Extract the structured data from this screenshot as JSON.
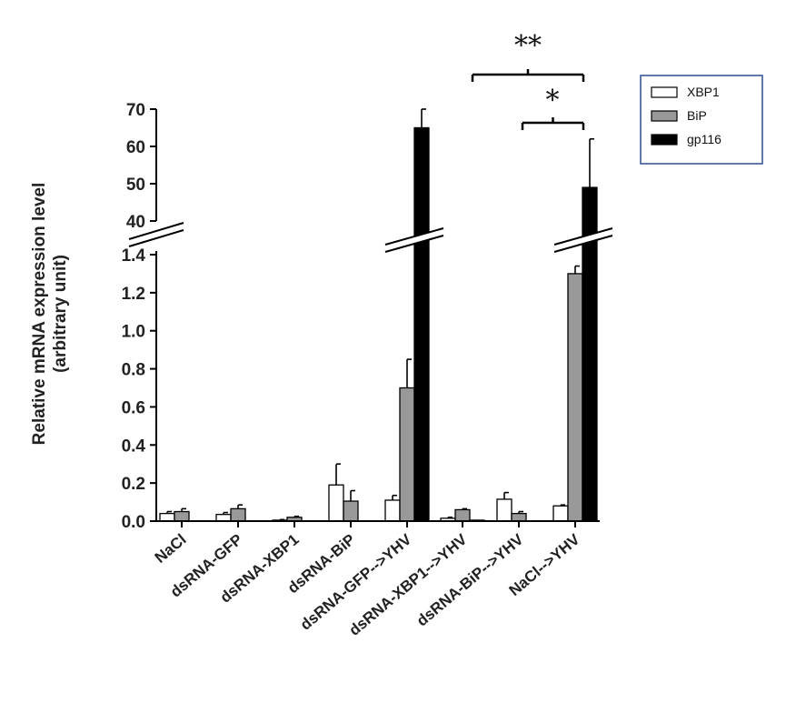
{
  "chart_data": {
    "type": "bar",
    "ylabel": "Relative mRNA expression level",
    "ylabel_sub": "(arbitrary unit)",
    "categories": [
      "NaCl",
      "dsRNA-GFP",
      "dsRNA-XBP1",
      "dsRNA-BiP",
      "dsRNA-GFP-->YHV",
      "dsRNA-XBP1-->YHV",
      "dsRNA-BiP-->YHV",
      "NaCl-->YHV"
    ],
    "series": [
      {
        "name": "XBP1",
        "color": "#ffffff",
        "values": [
          0.04,
          0.035,
          0.005,
          0.19,
          0.11,
          0.015,
          0.115,
          0.08
        ],
        "errors": [
          0.01,
          0.01,
          0.003,
          0.11,
          0.025,
          0.005,
          0.035,
          0.005
        ]
      },
      {
        "name": "BiP",
        "color": "#999999",
        "values": [
          0.05,
          0.065,
          0.02,
          0.105,
          0.7,
          0.06,
          0.04,
          1.3
        ],
        "errors": [
          0.015,
          0.02,
          0.005,
          0.055,
          0.15,
          0.005,
          0.01,
          0.04
        ]
      },
      {
        "name": "gp116",
        "color": "#000000",
        "values": [
          0.0,
          0.0,
          0.0,
          0.0,
          65,
          0.005,
          0.0,
          49
        ],
        "errors": [
          0,
          0,
          0,
          0,
          5,
          0,
          0,
          13
        ]
      }
    ],
    "y_axis": {
      "lower_ticks": [
        "0.0",
        "0.2",
        "0.4",
        "0.6",
        "0.8",
        "1.0",
        "1.2",
        "1.4"
      ],
      "lower_range": [
        0,
        1.4
      ],
      "upper_ticks": [
        "40",
        "50",
        "60",
        "70"
      ],
      "upper_range": [
        40,
        70
      ],
      "broken": true
    },
    "legend": {
      "position": "top-right",
      "entries": [
        "XBP1",
        "BiP",
        "gp116"
      ]
    },
    "annotations": [
      {
        "label": "**",
        "between": [
          "dsRNA-XBP1-->YHV",
          "NaCl-->YHV"
        ]
      },
      {
        "label": "*",
        "between": [
          "dsRNA-BiP-->YHV",
          "NaCl-->YHV"
        ]
      }
    ],
    "grid": false
  }
}
